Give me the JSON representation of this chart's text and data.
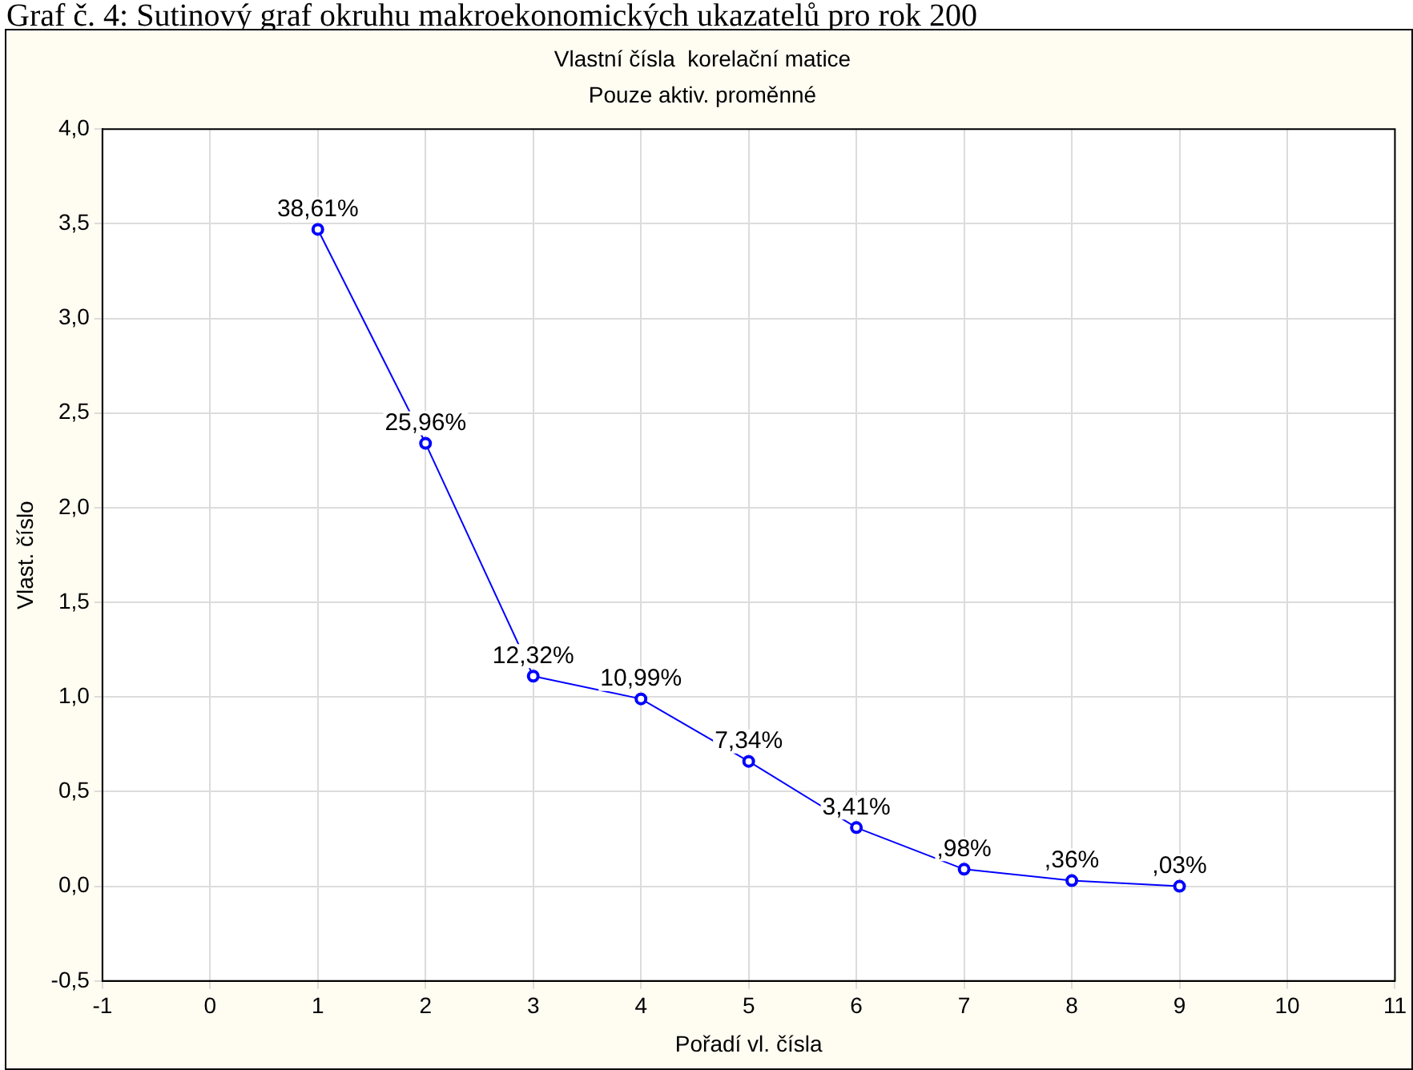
{
  "chart_data": {
    "type": "line",
    "title": "Vlastní čísla  korelační matice",
    "subtitle": "Pouze aktiv. proměnné",
    "xlabel": "Pořadí vl. čísla",
    "ylabel": "Vlast. číslo",
    "annotations": [
      "Graf č. 4: Sutinový graf okruhu makroekonomických ukazatelů pro rok 200",
      {
        "text": "38,61%",
        "x": 1,
        "y": 3.47
      },
      {
        "text": "25,96%",
        "x": 2,
        "y": 2.34
      },
      {
        "text": "12,32%",
        "x": 3,
        "y": 1.11
      },
      {
        "text": "10,99%",
        "x": 4,
        "y": 0.99
      },
      {
        "text": "7,34%",
        "x": 5,
        "y": 0.66
      },
      {
        "text": "3,41%",
        "x": 6,
        "y": 0.31
      },
      {
        "text": ",98%",
        "x": 7,
        "y": 0.09
      },
      {
        "text": ",36%",
        "x": 8,
        "y": 0.03
      },
      {
        "text": ",03%",
        "x": 9,
        "y": 0.0
      }
    ],
    "x": [
      1,
      2,
      3,
      4,
      5,
      6,
      7,
      8,
      9
    ],
    "series": [
      {
        "color": "#0000ff",
        "values": [
          3.47,
          2.34,
          1.11,
          0.99,
          0.66,
          0.31,
          0.09,
          0.03,
          0.0
        ]
      }
    ],
    "xlim": [
      -1,
      11
    ],
    "xticks": [
      -1,
      0,
      1,
      2,
      3,
      4,
      5,
      6,
      7,
      8,
      9,
      10,
      11
    ],
    "ylim": [
      -0.5,
      4.0
    ],
    "yticks": [
      {
        "value": -0.5,
        "label": "-0,5"
      },
      {
        "value": 0,
        "label": "0,0"
      },
      {
        "value": 0.5,
        "label": "0,5"
      },
      {
        "value": 1,
        "label": "1,0"
      },
      {
        "value": 1.5,
        "label": "1,5"
      },
      {
        "value": 2,
        "label": "2,0"
      },
      {
        "value": 2.5,
        "label": "2,5"
      },
      {
        "value": 3,
        "label": "3,0"
      },
      {
        "value": 3.5,
        "label": "3,5"
      },
      {
        "value": 4,
        "label": "4,0"
      }
    ],
    "grid": true,
    "marker": "circle",
    "line_style": "solid"
  }
}
